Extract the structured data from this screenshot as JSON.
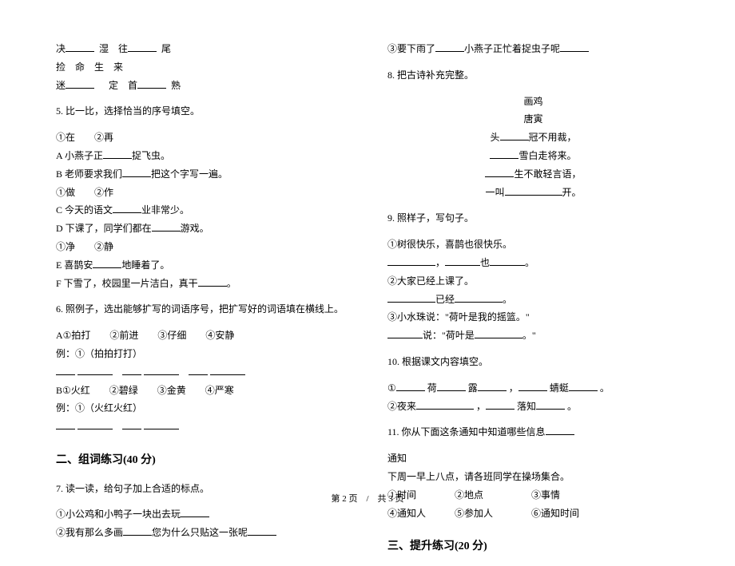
{
  "colors": {
    "text": "#000000",
    "bg": "#ffffff",
    "blank_border": "#000000"
  },
  "typography": {
    "body_fontsize": 12,
    "section_fontsize": 14,
    "font_family": "SimSun"
  },
  "left": {
    "word_rows": [
      {
        "a": "决",
        "b": "湿",
        "c": "往",
        "d": "尾"
      },
      {
        "a": "捡",
        "b": "命",
        "c": "生",
        "d": "来"
      },
      {
        "a": "迷",
        "b": "",
        "c": "定",
        "d1": "首",
        "d2": "熟"
      }
    ],
    "q5": {
      "title": "5. 比一比，选择恰当的序号填空。",
      "pair12": "①在　　②再",
      "lineA_1": "A 小燕子正",
      "lineA_2": "捉飞虫。",
      "lineB_1": "B 老师要求我们",
      "lineB_2": "把这个字写一遍。",
      "pair34": "①做　　②作",
      "lineC_1": "C 今天的语文",
      "lineC_2": "业非常少。",
      "lineD_1": "D 下课了，同学们都在",
      "lineD_2": "游戏。",
      "pair56": "①净　　②静",
      "lineE_1": "E 喜鹊安",
      "lineE_2": "地睡着了。",
      "lineF_1": "F 下雪了，校园里一片洁白，真干",
      "lineF_2": "。"
    },
    "q6": {
      "title": "6. 照例子，选出能够扩写的词语序号，把扩写好的词语填在横线上。",
      "rowA": "A①拍打　　②前进　　③仔细　　④安静",
      "exA": "例：①（拍拍打打）",
      "rowB": "B①火红　　②碧绿　　③金黄　　④严寒",
      "exB": "例：①（火红火红）"
    },
    "sec2": "二、组词练习(40 分)",
    "q7": {
      "title": "7. 读一读，给句子加上合适的标点。",
      "l1": "①小公鸡和小鸭子一块出去玩",
      "l2a": "②我有那么多画",
      "l2b": "您为什么只贴这一张呢"
    }
  },
  "right": {
    "l3a": "③要下雨了",
    "l3b": "小燕子正忙着捉虫子呢",
    "q8": {
      "title": "8. 把古诗补充完整。",
      "poem_title": "画鸡",
      "author": "唐寅",
      "p1a": "头",
      "p1b": "冠不用裁，",
      "p2a": "雪白走将来。",
      "p3a": "生不敢轻言语，",
      "p4a": "一叫",
      "p4b": "开。"
    },
    "q9": {
      "title": "9. 照样子，写句子。",
      "l1": "①树很快乐，喜鹊也很快乐。",
      "l1b_a": "，",
      "l1b_b": "也",
      "l1b_c": "。",
      "l2": "②大家已经上课了。",
      "l2b_a": "已经",
      "l2b_b": "。",
      "l3": "③小水珠说：\"荷叶是我的摇篮。\"",
      "l3b_a": "说：\"荷叶是",
      "l3b_b": "。\""
    },
    "q10": {
      "title": "10. 根据课文内容填空。",
      "r1_parts": [
        "①",
        "荷",
        "露",
        "，",
        "蜻蜓",
        "。"
      ],
      "r2_parts": [
        "②夜来",
        "，",
        "落知",
        "。"
      ]
    },
    "q11": {
      "title": "11. 你从下面这条通知中知道哪些信息",
      "notice_h": "通知",
      "notice_b": "下周一早上八点，请各班同学在操场集合。",
      "opts1": "①时间　　　　②地点　　　　　③事情",
      "opts2": "④通知人　　　⑤参加人　　　　⑥通知时间"
    },
    "sec3": "三、提升练习(20 分)"
  },
  "footer": "第 2 页　/　共 3 页"
}
